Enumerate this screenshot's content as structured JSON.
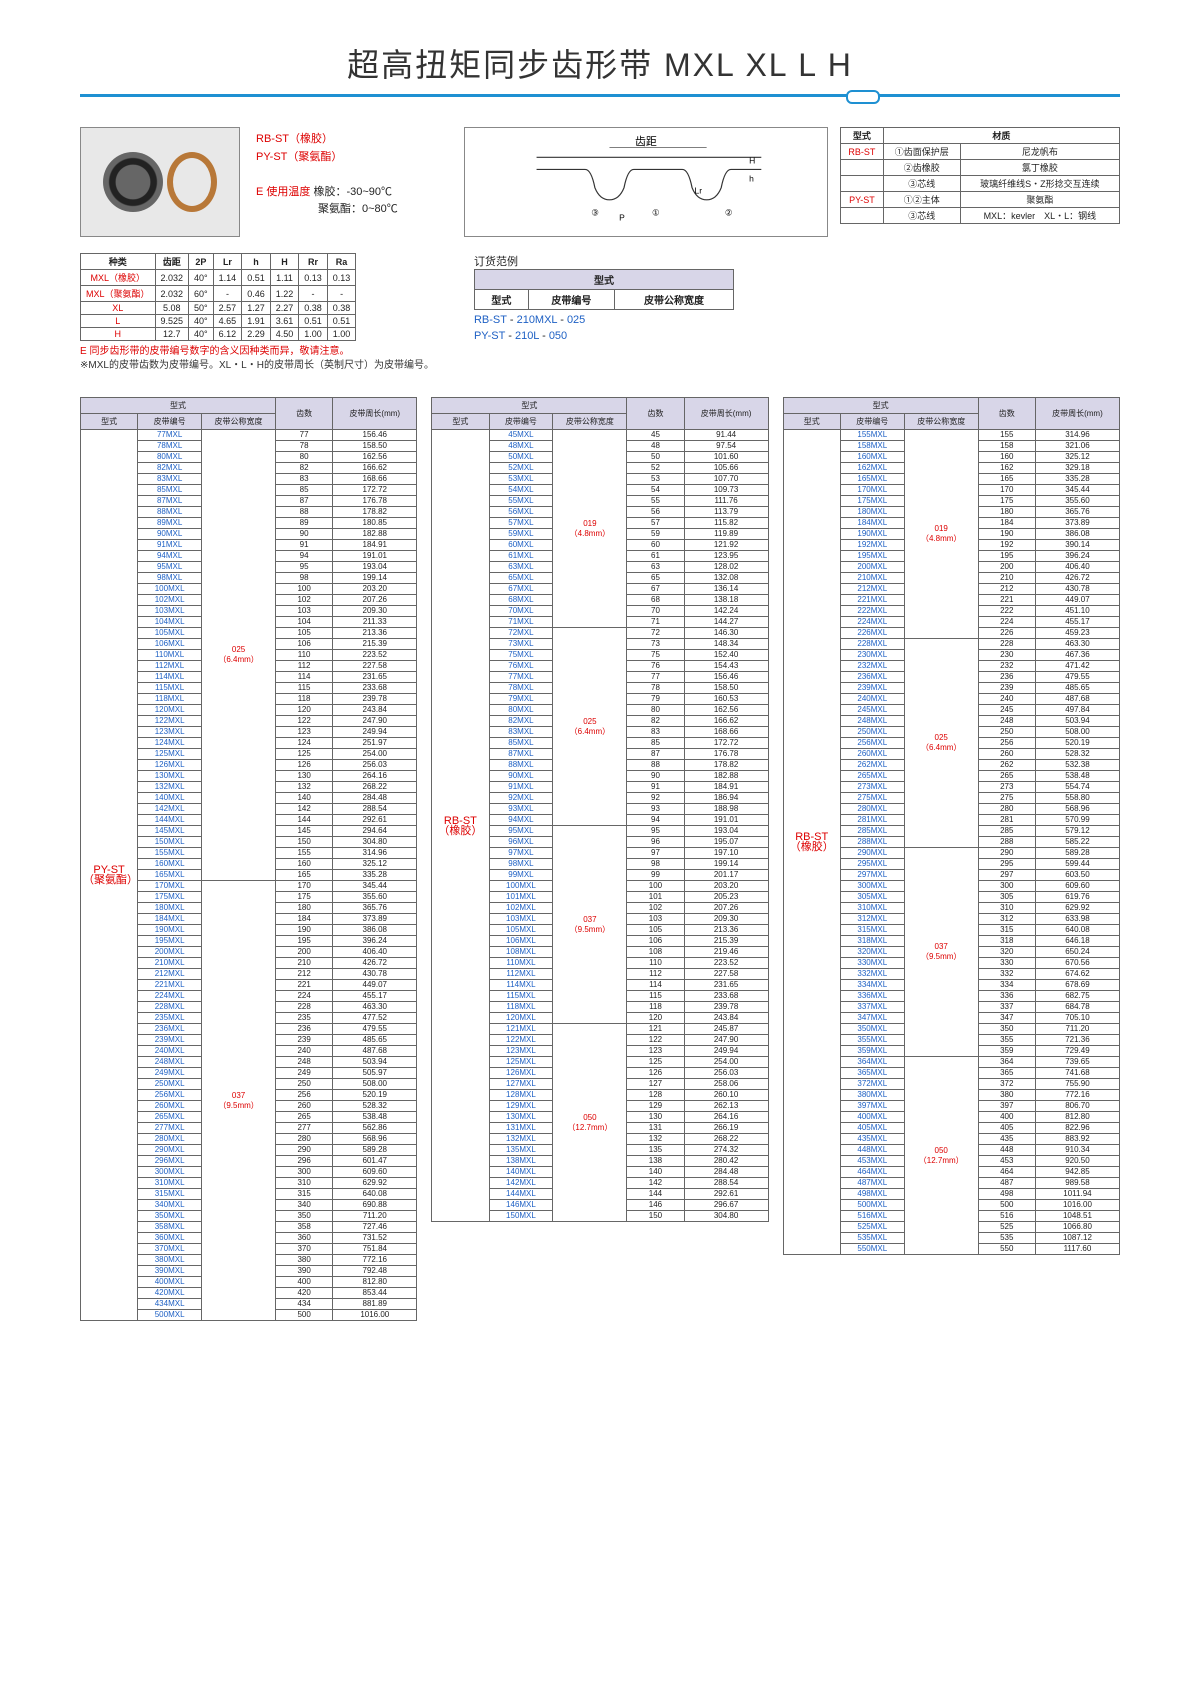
{
  "title": "超高扭矩同步齿形带 MXL XL L H",
  "product_labels": {
    "rb": "RB-ST（橡胶）",
    "py": "PY-ST（聚氨酯）",
    "temp_label": "E 使用温度",
    "temp_rb": "橡胶：-30~90℃",
    "temp_py": "聚氨酯：0~80℃"
  },
  "diagram_label": "齿距",
  "material_table": {
    "headers": [
      "型式",
      "",
      "材质"
    ],
    "rows": [
      [
        "RB-ST",
        "①齿面保护层",
        "尼龙帆布"
      ],
      [
        "",
        "②齿橡胶",
        "氯丁橡胶"
      ],
      [
        "",
        "③芯线",
        "玻璃纤维线S・Z形捻交互连续"
      ],
      [
        "PY-ST",
        "①②主体",
        "聚氨酯"
      ],
      [
        "",
        "③芯线",
        "MXL：kevler　XL・L：钢线"
      ]
    ]
  },
  "spec_table": {
    "headers": [
      "种类",
      "齿距",
      "2P",
      "Lr",
      "h",
      "H",
      "Rr",
      "Ra"
    ],
    "rows": [
      [
        "MXL（橡胶）",
        "2.032",
        "40°",
        "1.14",
        "0.51",
        "1.11",
        "0.13",
        "0.13"
      ],
      [
        "MXL（聚氨酯）",
        "2.032",
        "60°",
        "-",
        "0.46",
        "1.22",
        "-",
        "-"
      ],
      [
        "XL",
        "5.08",
        "50°",
        "2.57",
        "1.27",
        "2.27",
        "0.38",
        "0.38"
      ],
      [
        "L",
        "9.525",
        "40°",
        "4.65",
        "1.91",
        "3.61",
        "0.51",
        "0.51"
      ],
      [
        "H",
        "12.7",
        "40°",
        "6.12",
        "2.29",
        "4.50",
        "1.00",
        "1.00"
      ]
    ]
  },
  "notes": [
    "E 同步齿形带的皮带编号数字的含义因种类而异，敬请注意。",
    "※MXL的皮带齿数为皮带编号。XL・L・H的皮带周长（英制尺寸）为皮带编号。"
  ],
  "order_label": "订货范例",
  "order_table": {
    "h1": "型式",
    "headers": [
      "型式",
      "皮带编号",
      "皮带公称宽度"
    ],
    "ex1": [
      "RB-ST",
      "-",
      "210MXL",
      "-",
      "025"
    ],
    "ex2": [
      "PY-ST",
      "-",
      "210L",
      "-",
      "050"
    ]
  },
  "col_headers_top": [
    "型式"
  ],
  "col_headers": [
    "型式",
    "皮带编号",
    "皮带公称宽度",
    "齿数",
    "皮带周长(mm)"
  ],
  "col1": {
    "type_label": "PY-ST\n（聚氨酯）",
    "widths": [
      "025\n（6.4mm）",
      "037\n（9.5mm）"
    ],
    "rows": [
      [
        "77MXL",
        "77",
        "156.46"
      ],
      [
        "78MXL",
        "78",
        "158.50"
      ],
      [
        "80MXL",
        "80",
        "162.56"
      ],
      [
        "82MXL",
        "82",
        "166.62"
      ],
      [
        "83MXL",
        "83",
        "168.66"
      ],
      [
        "85MXL",
        "85",
        "172.72"
      ],
      [
        "87MXL",
        "87",
        "176.78"
      ],
      [
        "88MXL",
        "88",
        "178.82"
      ],
      [
        "89MXL",
        "89",
        "180.85"
      ],
      [
        "90MXL",
        "90",
        "182.88"
      ],
      [
        "91MXL",
        "91",
        "184.91"
      ],
      [
        "94MXL",
        "94",
        "191.01"
      ],
      [
        "95MXL",
        "95",
        "193.04"
      ],
      [
        "98MXL",
        "98",
        "199.14"
      ],
      [
        "100MXL",
        "100",
        "203.20"
      ],
      [
        "102MXL",
        "102",
        "207.26"
      ],
      [
        "103MXL",
        "103",
        "209.30"
      ],
      [
        "104MXL",
        "104",
        "211.33"
      ],
      [
        "105MXL",
        "105",
        "213.36"
      ],
      [
        "106MXL",
        "106",
        "215.39"
      ],
      [
        "110MXL",
        "110",
        "223.52"
      ],
      [
        "112MXL",
        "112",
        "227.58"
      ],
      [
        "114MXL",
        "114",
        "231.65"
      ],
      [
        "115MXL",
        "115",
        "233.68"
      ],
      [
        "118MXL",
        "118",
        "239.78"
      ],
      [
        "120MXL",
        "120",
        "243.84"
      ],
      [
        "122MXL",
        "122",
        "247.90"
      ],
      [
        "123MXL",
        "123",
        "249.94"
      ],
      [
        "124MXL",
        "124",
        "251.97"
      ],
      [
        "125MXL",
        "125",
        "254.00"
      ],
      [
        "126MXL",
        "126",
        "256.03"
      ],
      [
        "130MXL",
        "130",
        "264.16"
      ],
      [
        "132MXL",
        "132",
        "268.22"
      ],
      [
        "140MXL",
        "140",
        "284.48"
      ],
      [
        "142MXL",
        "142",
        "288.54"
      ],
      [
        "144MXL",
        "144",
        "292.61"
      ],
      [
        "145MXL",
        "145",
        "294.64"
      ],
      [
        "150MXL",
        "150",
        "304.80"
      ],
      [
        "155MXL",
        "155",
        "314.96"
      ],
      [
        "160MXL",
        "160",
        "325.12"
      ],
      [
        "165MXL",
        "165",
        "335.28"
      ],
      [
        "170MXL",
        "170",
        "345.44"
      ],
      [
        "175MXL",
        "175",
        "355.60"
      ],
      [
        "180MXL",
        "180",
        "365.76"
      ],
      [
        "184MXL",
        "184",
        "373.89"
      ],
      [
        "190MXL",
        "190",
        "386.08"
      ],
      [
        "195MXL",
        "195",
        "396.24"
      ],
      [
        "200MXL",
        "200",
        "406.40"
      ],
      [
        "210MXL",
        "210",
        "426.72"
      ],
      [
        "212MXL",
        "212",
        "430.78"
      ],
      [
        "221MXL",
        "221",
        "449.07"
      ],
      [
        "224MXL",
        "224",
        "455.17"
      ],
      [
        "228MXL",
        "228",
        "463.30"
      ],
      [
        "235MXL",
        "235",
        "477.52"
      ],
      [
        "236MXL",
        "236",
        "479.55"
      ],
      [
        "239MXL",
        "239",
        "485.65"
      ],
      [
        "240MXL",
        "240",
        "487.68"
      ],
      [
        "248MXL",
        "248",
        "503.94"
      ],
      [
        "249MXL",
        "249",
        "505.97"
      ],
      [
        "250MXL",
        "250",
        "508.00"
      ],
      [
        "256MXL",
        "256",
        "520.19"
      ],
      [
        "260MXL",
        "260",
        "528.32"
      ],
      [
        "265MXL",
        "265",
        "538.48"
      ],
      [
        "277MXL",
        "277",
        "562.86"
      ],
      [
        "280MXL",
        "280",
        "568.96"
      ],
      [
        "290MXL",
        "290",
        "589.28"
      ],
      [
        "296MXL",
        "296",
        "601.47"
      ],
      [
        "300MXL",
        "300",
        "609.60"
      ],
      [
        "310MXL",
        "310",
        "629.92"
      ],
      [
        "315MXL",
        "315",
        "640.08"
      ],
      [
        "340MXL",
        "340",
        "690.88"
      ],
      [
        "350MXL",
        "350",
        "711.20"
      ],
      [
        "358MXL",
        "358",
        "727.46"
      ],
      [
        "360MXL",
        "360",
        "731.52"
      ],
      [
        "370MXL",
        "370",
        "751.84"
      ],
      [
        "380MXL",
        "380",
        "772.16"
      ],
      [
        "390MXL",
        "390",
        "792.48"
      ],
      [
        "400MXL",
        "400",
        "812.80"
      ],
      [
        "420MXL",
        "420",
        "853.44"
      ],
      [
        "434MXL",
        "434",
        "881.89"
      ],
      [
        "500MXL",
        "500",
        "1016.00"
      ]
    ]
  },
  "col2": {
    "type_label": "RB-ST\n（橡胶）",
    "widths": [
      "019\n（4.8mm）",
      "025\n（6.4mm）",
      "037\n（9.5mm）",
      "050\n（12.7mm）"
    ],
    "rows": [
      [
        "45MXL",
        "45",
        "91.44"
      ],
      [
        "48MXL",
        "48",
        "97.54"
      ],
      [
        "50MXL",
        "50",
        "101.60"
      ],
      [
        "52MXL",
        "52",
        "105.66"
      ],
      [
        "53MXL",
        "53",
        "107.70"
      ],
      [
        "54MXL",
        "54",
        "109.73"
      ],
      [
        "55MXL",
        "55",
        "111.76"
      ],
      [
        "56MXL",
        "56",
        "113.79"
      ],
      [
        "57MXL",
        "57",
        "115.82"
      ],
      [
        "59MXL",
        "59",
        "119.89"
      ],
      [
        "60MXL",
        "60",
        "121.92"
      ],
      [
        "61MXL",
        "61",
        "123.95"
      ],
      [
        "63MXL",
        "63",
        "128.02"
      ],
      [
        "65MXL",
        "65",
        "132.08"
      ],
      [
        "67MXL",
        "67",
        "136.14"
      ],
      [
        "68MXL",
        "68",
        "138.18"
      ],
      [
        "70MXL",
        "70",
        "142.24"
      ],
      [
        "71MXL",
        "71",
        "144.27"
      ],
      [
        "72MXL",
        "72",
        "146.30"
      ],
      [
        "73MXL",
        "73",
        "148.34"
      ],
      [
        "75MXL",
        "75",
        "152.40"
      ],
      [
        "76MXL",
        "76",
        "154.43"
      ],
      [
        "77MXL",
        "77",
        "156.46"
      ],
      [
        "78MXL",
        "78",
        "158.50"
      ],
      [
        "79MXL",
        "79",
        "160.53"
      ],
      [
        "80MXL",
        "80",
        "162.56"
      ],
      [
        "82MXL",
        "82",
        "166.62"
      ],
      [
        "83MXL",
        "83",
        "168.66"
      ],
      [
        "85MXL",
        "85",
        "172.72"
      ],
      [
        "87MXL",
        "87",
        "176.78"
      ],
      [
        "88MXL",
        "88",
        "178.82"
      ],
      [
        "90MXL",
        "90",
        "182.88"
      ],
      [
        "91MXL",
        "91",
        "184.91"
      ],
      [
        "92MXL",
        "92",
        "186.94"
      ],
      [
        "93MXL",
        "93",
        "188.98"
      ],
      [
        "94MXL",
        "94",
        "191.01"
      ],
      [
        "95MXL",
        "95",
        "193.04"
      ],
      [
        "96MXL",
        "96",
        "195.07"
      ],
      [
        "97MXL",
        "97",
        "197.10"
      ],
      [
        "98MXL",
        "98",
        "199.14"
      ],
      [
        "99MXL",
        "99",
        "201.17"
      ],
      [
        "100MXL",
        "100",
        "203.20"
      ],
      [
        "101MXL",
        "101",
        "205.23"
      ],
      [
        "102MXL",
        "102",
        "207.26"
      ],
      [
        "103MXL",
        "103",
        "209.30"
      ],
      [
        "105MXL",
        "105",
        "213.36"
      ],
      [
        "106MXL",
        "106",
        "215.39"
      ],
      [
        "108MXL",
        "108",
        "219.46"
      ],
      [
        "110MXL",
        "110",
        "223.52"
      ],
      [
        "112MXL",
        "112",
        "227.58"
      ],
      [
        "114MXL",
        "114",
        "231.65"
      ],
      [
        "115MXL",
        "115",
        "233.68"
      ],
      [
        "118MXL",
        "118",
        "239.78"
      ],
      [
        "120MXL",
        "120",
        "243.84"
      ],
      [
        "121MXL",
        "121",
        "245.87"
      ],
      [
        "122MXL",
        "122",
        "247.90"
      ],
      [
        "123MXL",
        "123",
        "249.94"
      ],
      [
        "125MXL",
        "125",
        "254.00"
      ],
      [
        "126MXL",
        "126",
        "256.03"
      ],
      [
        "127MXL",
        "127",
        "258.06"
      ],
      [
        "128MXL",
        "128",
        "260.10"
      ],
      [
        "129MXL",
        "129",
        "262.13"
      ],
      [
        "130MXL",
        "130",
        "264.16"
      ],
      [
        "131MXL",
        "131",
        "266.19"
      ],
      [
        "132MXL",
        "132",
        "268.22"
      ],
      [
        "135MXL",
        "135",
        "274.32"
      ],
      [
        "138MXL",
        "138",
        "280.42"
      ],
      [
        "140MXL",
        "140",
        "284.48"
      ],
      [
        "142MXL",
        "142",
        "288.54"
      ],
      [
        "144MXL",
        "144",
        "292.61"
      ],
      [
        "146MXL",
        "146",
        "296.67"
      ],
      [
        "150MXL",
        "150",
        "304.80"
      ]
    ]
  },
  "col3": {
    "type_label": "RB-ST\n（橡胶）",
    "widths": [
      "019\n（4.8mm）",
      "025\n（6.4mm）",
      "037\n（9.5mm）",
      "050\n（12.7mm）"
    ],
    "rows": [
      [
        "155MXL",
        "155",
        "314.96"
      ],
      [
        "158MXL",
        "158",
        "321.06"
      ],
      [
        "160MXL",
        "160",
        "325.12"
      ],
      [
        "162MXL",
        "162",
        "329.18"
      ],
      [
        "165MXL",
        "165",
        "335.28"
      ],
      [
        "170MXL",
        "170",
        "345.44"
      ],
      [
        "175MXL",
        "175",
        "355.60"
      ],
      [
        "180MXL",
        "180",
        "365.76"
      ],
      [
        "184MXL",
        "184",
        "373.89"
      ],
      [
        "190MXL",
        "190",
        "386.08"
      ],
      [
        "192MXL",
        "192",
        "390.14"
      ],
      [
        "195MXL",
        "195",
        "396.24"
      ],
      [
        "200MXL",
        "200",
        "406.40"
      ],
      [
        "210MXL",
        "210",
        "426.72"
      ],
      [
        "212MXL",
        "212",
        "430.78"
      ],
      [
        "221MXL",
        "221",
        "449.07"
      ],
      [
        "222MXL",
        "222",
        "451.10"
      ],
      [
        "224MXL",
        "224",
        "455.17"
      ],
      [
        "226MXL",
        "226",
        "459.23"
      ],
      [
        "228MXL",
        "228",
        "463.30"
      ],
      [
        "230MXL",
        "230",
        "467.36"
      ],
      [
        "232MXL",
        "232",
        "471.42"
      ],
      [
        "236MXL",
        "236",
        "479.55"
      ],
      [
        "239MXL",
        "239",
        "485.65"
      ],
      [
        "240MXL",
        "240",
        "487.68"
      ],
      [
        "245MXL",
        "245",
        "497.84"
      ],
      [
        "248MXL",
        "248",
        "503.94"
      ],
      [
        "250MXL",
        "250",
        "508.00"
      ],
      [
        "256MXL",
        "256",
        "520.19"
      ],
      [
        "260MXL",
        "260",
        "528.32"
      ],
      [
        "262MXL",
        "262",
        "532.38"
      ],
      [
        "265MXL",
        "265",
        "538.48"
      ],
      [
        "273MXL",
        "273",
        "554.74"
      ],
      [
        "275MXL",
        "275",
        "558.80"
      ],
      [
        "280MXL",
        "280",
        "568.96"
      ],
      [
        "281MXL",
        "281",
        "570.99"
      ],
      [
        "285MXL",
        "285",
        "579.12"
      ],
      [
        "288MXL",
        "288",
        "585.22"
      ],
      [
        "290MXL",
        "290",
        "589.28"
      ],
      [
        "295MXL",
        "295",
        "599.44"
      ],
      [
        "297MXL",
        "297",
        "603.50"
      ],
      [
        "300MXL",
        "300",
        "609.60"
      ],
      [
        "305MXL",
        "305",
        "619.76"
      ],
      [
        "310MXL",
        "310",
        "629.92"
      ],
      [
        "312MXL",
        "312",
        "633.98"
      ],
      [
        "315MXL",
        "315",
        "640.08"
      ],
      [
        "318MXL",
        "318",
        "646.18"
      ],
      [
        "320MXL",
        "320",
        "650.24"
      ],
      [
        "330MXL",
        "330",
        "670.56"
      ],
      [
        "332MXL",
        "332",
        "674.62"
      ],
      [
        "334MXL",
        "334",
        "678.69"
      ],
      [
        "336MXL",
        "336",
        "682.75"
      ],
      [
        "337MXL",
        "337",
        "684.78"
      ],
      [
        "347MXL",
        "347",
        "705.10"
      ],
      [
        "350MXL",
        "350",
        "711.20"
      ],
      [
        "355MXL",
        "355",
        "721.36"
      ],
      [
        "359MXL",
        "359",
        "729.49"
      ],
      [
        "364MXL",
        "364",
        "739.65"
      ],
      [
        "365MXL",
        "365",
        "741.68"
      ],
      [
        "372MXL",
        "372",
        "755.90"
      ],
      [
        "380MXL",
        "380",
        "772.16"
      ],
      [
        "397MXL",
        "397",
        "806.70"
      ],
      [
        "400MXL",
        "400",
        "812.80"
      ],
      [
        "405MXL",
        "405",
        "822.96"
      ],
      [
        "435MXL",
        "435",
        "883.92"
      ],
      [
        "448MXL",
        "448",
        "910.34"
      ],
      [
        "453MXL",
        "453",
        "920.50"
      ],
      [
        "464MXL",
        "464",
        "942.85"
      ],
      [
        "487MXL",
        "487",
        "989.58"
      ],
      [
        "498MXL",
        "498",
        "1011.94"
      ],
      [
        "500MXL",
        "500",
        "1016.00"
      ],
      [
        "516MXL",
        "516",
        "1048.51"
      ],
      [
        "525MXL",
        "525",
        "1066.80"
      ],
      [
        "535MXL",
        "535",
        "1087.12"
      ],
      [
        "550MXL",
        "550",
        "1117.60"
      ]
    ]
  }
}
